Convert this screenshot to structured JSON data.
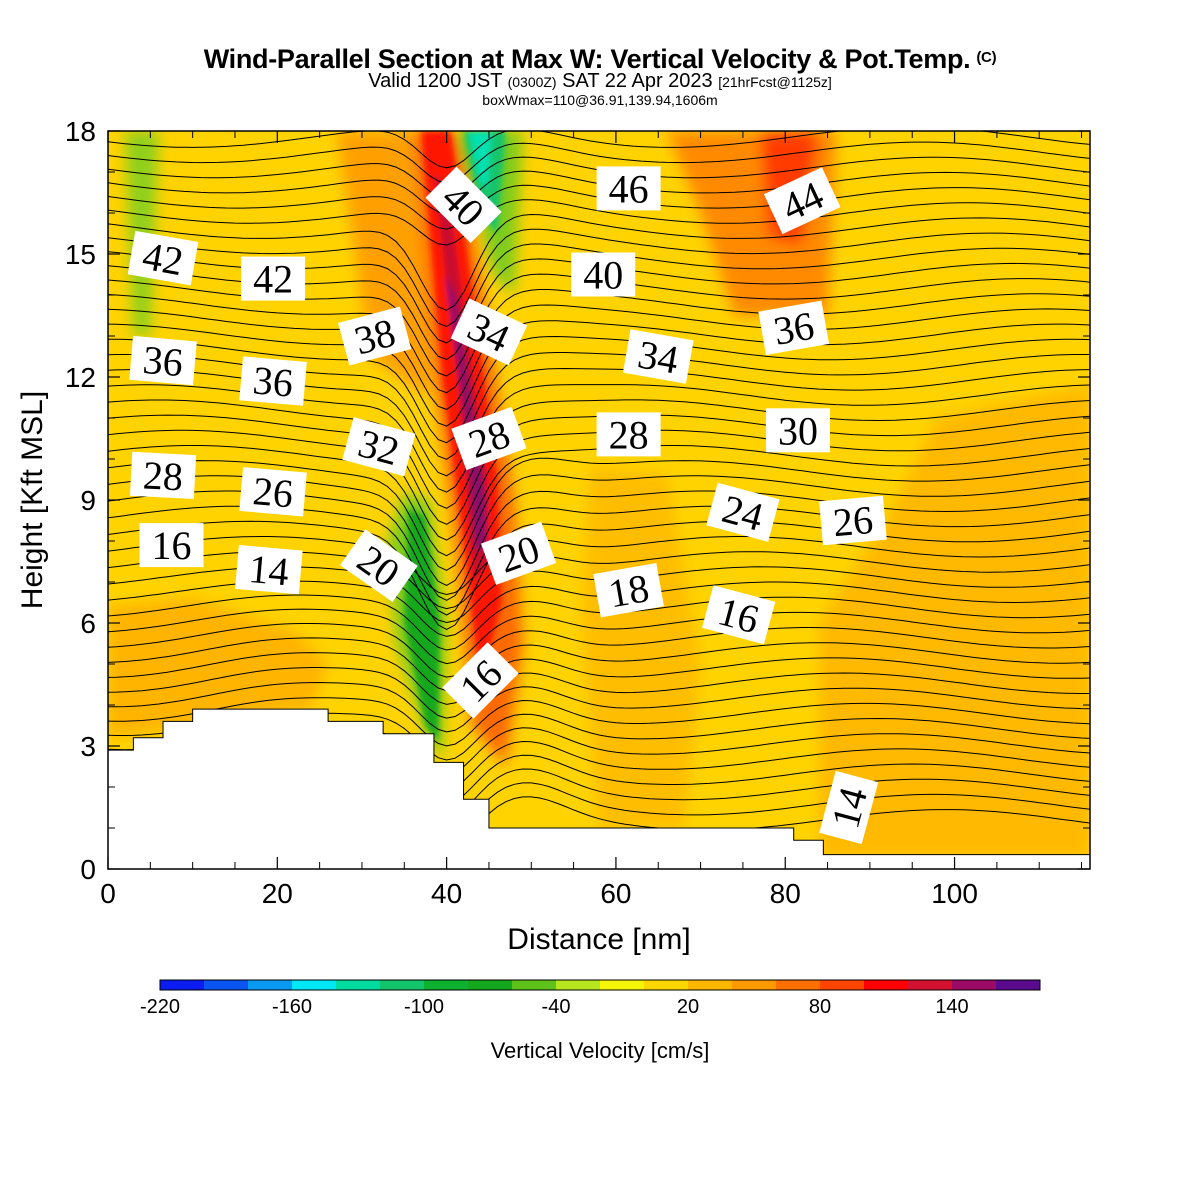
{
  "header": {
    "title": "Wind-Parallel Section at Max W: Vertical Velocity & Pot.Temp.",
    "copyright_mark": "(C)",
    "valid_prefix": "Valid 1200 JST",
    "valid_utc": "(0300Z)",
    "valid_date": "SAT 22 Apr 2023",
    "forecast_info": "[21hrFcst@1125z]",
    "box_info": "boxWmax=110@36.91,139.94,1606m"
  },
  "chart_data": {
    "type": "heatmap",
    "xlabel": "Distance [nm]",
    "ylabel": "Height [Kft MSL]",
    "xlim": [
      0,
      116
    ],
    "ylim": [
      0,
      18
    ],
    "x_ticks": [
      "0",
      "20",
      "40",
      "60",
      "80",
      "100"
    ],
    "y_ticks": [
      "0",
      "3",
      "6",
      "9",
      "12",
      "15",
      "18"
    ],
    "colorbar": {
      "title": "Vertical Velocity [cm/s]",
      "tick_labels": [
        "-220",
        "-160",
        "-100",
        "-40",
        "20",
        "80",
        "140"
      ],
      "levels": [
        -220,
        -200,
        -180,
        -160,
        -140,
        -120,
        -100,
        -80,
        -60,
        -40,
        -20,
        0,
        20,
        40,
        60,
        80,
        100,
        120,
        140,
        160
      ],
      "colors": [
        "#0a1cf0",
        "#0a55f0",
        "#0a99f0",
        "#00e8f5",
        "#00dca0",
        "#12c46a",
        "#0eb030",
        "#14a61c",
        "#5ec21a",
        "#b8e61e",
        "#f5f50a",
        "#ffd700",
        "#ffb700",
        "#ff9900",
        "#ff7000",
        "#ff4500",
        "#ff0000",
        "#d21030",
        "#9b0a64",
        "#5a0a8c"
      ]
    },
    "terrain_kft": [
      [
        0,
        2.9
      ],
      [
        3,
        2.9
      ],
      [
        3,
        3.2
      ],
      [
        6.5,
        3.2
      ],
      [
        6.5,
        3.6
      ],
      [
        10,
        3.6
      ],
      [
        10,
        3.9
      ],
      [
        26,
        3.9
      ],
      [
        26,
        3.6
      ],
      [
        32.5,
        3.6
      ],
      [
        32.5,
        3.3
      ],
      [
        38.5,
        3.3
      ],
      [
        38.5,
        2.6
      ],
      [
        42,
        2.6
      ],
      [
        42,
        1.7
      ],
      [
        45,
        1.7
      ],
      [
        45,
        1.0
      ],
      [
        81,
        1.0
      ],
      [
        81,
        0.7
      ],
      [
        84.5,
        0.7
      ],
      [
        84.5,
        0.35
      ],
      [
        116,
        0.35
      ]
    ],
    "contour_labels": [
      {
        "text": "42",
        "x": 6.5,
        "y": 14.9,
        "angle": 10
      },
      {
        "text": "42",
        "x": 19.5,
        "y": 14.4,
        "angle": 0
      },
      {
        "text": "40",
        "x": 42,
        "y": 16.2,
        "angle": 45
      },
      {
        "text": "46",
        "x": 61.5,
        "y": 16.6,
        "angle": 0
      },
      {
        "text": "44",
        "x": 82,
        "y": 16.3,
        "angle": -25
      },
      {
        "text": "40",
        "x": 58.5,
        "y": 14.5,
        "angle": 0
      },
      {
        "text": "38",
        "x": 31.5,
        "y": 13.0,
        "angle": -15
      },
      {
        "text": "34",
        "x": 45,
        "y": 13.1,
        "angle": 25
      },
      {
        "text": "36",
        "x": 6.5,
        "y": 12.4,
        "angle": 5
      },
      {
        "text": "36",
        "x": 19.5,
        "y": 11.9,
        "angle": 5
      },
      {
        "text": "34",
        "x": 65,
        "y": 12.5,
        "angle": 10
      },
      {
        "text": "36",
        "x": 81,
        "y": 13.2,
        "angle": -10
      },
      {
        "text": "32",
        "x": 32,
        "y": 10.3,
        "angle": 15
      },
      {
        "text": "28",
        "x": 45,
        "y": 10.5,
        "angle": -20
      },
      {
        "text": "28",
        "x": 61.5,
        "y": 10.6,
        "angle": 0
      },
      {
        "text": "30",
        "x": 81.5,
        "y": 10.7,
        "angle": 0
      },
      {
        "text": "28",
        "x": 6.5,
        "y": 9.6,
        "angle": 3
      },
      {
        "text": "26",
        "x": 19.5,
        "y": 9.2,
        "angle": 5
      },
      {
        "text": "24",
        "x": 75,
        "y": 8.7,
        "angle": 15
      },
      {
        "text": "26",
        "x": 88,
        "y": 8.5,
        "angle": -5
      },
      {
        "text": "16",
        "x": 7.5,
        "y": 7.9,
        "angle": 0
      },
      {
        "text": "14",
        "x": 19,
        "y": 7.3,
        "angle": 5
      },
      {
        "text": "20",
        "x": 32,
        "y": 7.4,
        "angle": 35
      },
      {
        "text": "20",
        "x": 48.5,
        "y": 7.7,
        "angle": -20
      },
      {
        "text": "18",
        "x": 61.5,
        "y": 6.8,
        "angle": -10
      },
      {
        "text": "16",
        "x": 74.5,
        "y": 6.2,
        "angle": 15
      },
      {
        "text": "16",
        "x": 44,
        "y": 4.6,
        "angle": -45
      },
      {
        "text": "14",
        "x": 87.5,
        "y": 1.5,
        "angle": -75
      }
    ]
  }
}
